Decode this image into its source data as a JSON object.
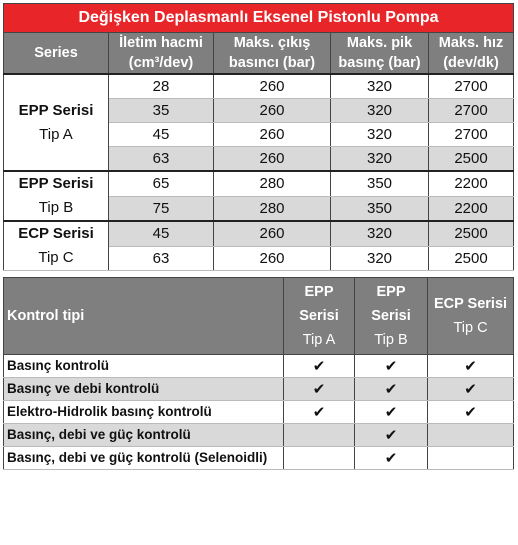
{
  "title": "Değişken Deplasmanlı Eksenel Pistonlu Pompa",
  "table1": {
    "header": [
      "Series",
      "İletim hacmi (cm³/dev)",
      "Maks. çıkış basıncı (bar)",
      "Maks. pik basınç (bar)",
      "Maks. hız (dev/dk)"
    ],
    "groups": [
      {
        "series": "EPP Serisi",
        "type": "Tip A",
        "rows": [
          [
            28,
            260,
            320,
            2700
          ],
          [
            35,
            260,
            320,
            2700
          ],
          [
            45,
            260,
            320,
            2700
          ],
          [
            63,
            260,
            320,
            2500
          ]
        ]
      },
      {
        "series": "EPP Serisi",
        "type": "Tip B",
        "rows": [
          [
            65,
            280,
            350,
            2200
          ],
          [
            75,
            280,
            350,
            2200
          ]
        ]
      },
      {
        "series": "ECP Serisi",
        "type": "Tip C",
        "rows": [
          [
            45,
            260,
            320,
            2500
          ],
          [
            63,
            260,
            320,
            2500
          ]
        ]
      }
    ]
  },
  "table2": {
    "header": {
      "label": "Kontrol tipi",
      "columns": [
        {
          "series": "EPP Serisi",
          "type": "Tip A"
        },
        {
          "series": "EPP Serisi",
          "type": "Tip B"
        },
        {
          "series": "ECP Serisi",
          "type": "Tip C"
        }
      ]
    },
    "rows": [
      {
        "label": "Basınç kontrolü",
        "checks": [
          "✔",
          "✔",
          "✔"
        ]
      },
      {
        "label": "Basınç ve debi kontrolü",
        "checks": [
          "✔",
          "✔",
          "✔"
        ]
      },
      {
        "label": "Elektro-Hidrolik basınç kontrolü",
        "checks": [
          "✔",
          "✔",
          "✔"
        ]
      },
      {
        "label": "Basınç, debi ve güç kontrolü",
        "checks": [
          null,
          "✔",
          null
        ]
      },
      {
        "label": "Basınç, debi ve güç kontrolü (Selenoidli)",
        "checks": [
          null,
          "✔",
          null
        ]
      }
    ]
  }
}
